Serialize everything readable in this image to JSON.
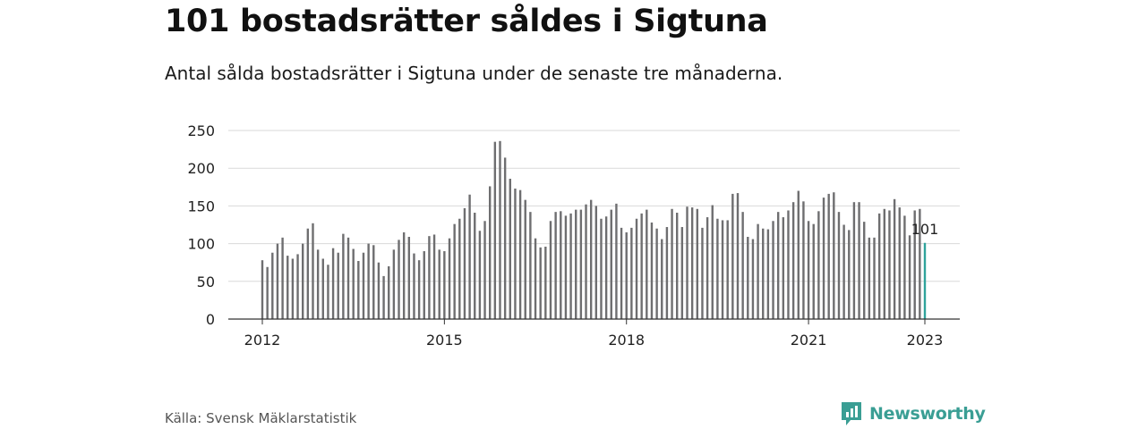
{
  "header": {
    "title": "101 bostadsrätter såldes i Sigtuna",
    "subtitle": "Antal sålda bostadsrätter i Sigtuna under de senaste tre månaderna."
  },
  "footer": {
    "source": "Källa: Svensk Mäklarstatistik",
    "brand": "Newsworthy"
  },
  "colors": {
    "bar": "#6e6e70",
    "highlight": "#2fa39b",
    "grid": "#dadada",
    "brand": "#3a9e94"
  },
  "chart_data": {
    "type": "bar",
    "title": "",
    "xlabel": "",
    "ylabel": "",
    "ylim": [
      0,
      250
    ],
    "yticks": [
      0,
      50,
      100,
      150,
      200,
      250
    ],
    "xticks": [
      {
        "label": "2012",
        "index": 0
      },
      {
        "label": "2015",
        "index": 36
      },
      {
        "label": "2018",
        "index": 72
      },
      {
        "label": "2021",
        "index": 108
      },
      {
        "label": "2023",
        "index": 131
      }
    ],
    "grid": true,
    "highlight": {
      "index": 131,
      "label": "101"
    },
    "values": [
      78,
      69,
      88,
      100,
      108,
      84,
      80,
      86,
      100,
      120,
      127,
      92,
      80,
      72,
      94,
      88,
      113,
      108,
      93,
      77,
      88,
      100,
      98,
      75,
      57,
      70,
      92,
      105,
      115,
      109,
      87,
      78,
      90,
      110,
      112,
      92,
      90,
      107,
      126,
      133,
      147,
      165,
      141,
      117,
      130,
      176,
      235,
      236,
      214,
      186,
      173,
      171,
      158,
      142,
      107,
      95,
      96,
      130,
      142,
      143,
      137,
      140,
      145,
      145,
      152,
      158,
      150,
      133,
      136,
      145,
      153,
      121,
      115,
      121,
      133,
      140,
      145,
      128,
      120,
      106,
      122,
      146,
      141,
      122,
      149,
      148,
      146,
      121,
      135,
      151,
      133,
      131,
      131,
      166,
      167,
      142,
      109,
      106,
      126,
      120,
      119,
      130,
      142,
      135,
      144,
      155,
      170,
      156,
      130,
      126,
      143,
      161,
      166,
      168,
      142,
      125,
      118,
      155,
      155,
      129,
      108,
      108,
      140,
      146,
      144,
      159,
      148,
      137,
      111,
      144,
      146,
      101
    ]
  }
}
